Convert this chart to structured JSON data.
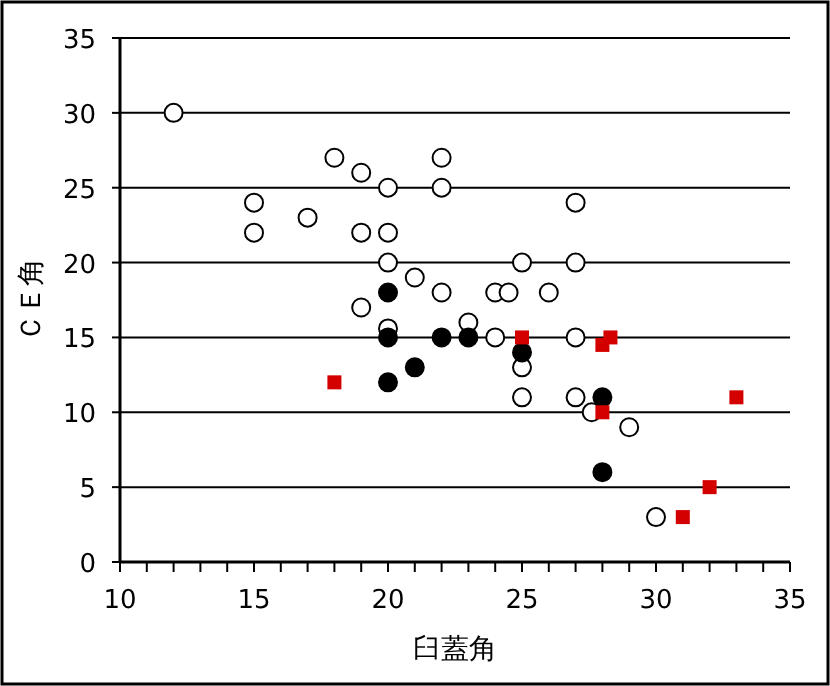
{
  "chart_data": {
    "type": "scatter",
    "xlabel": "臼蓋角",
    "ylabel": "ＣＥ角",
    "xlim": [
      10,
      35
    ],
    "ylim": [
      0,
      35
    ],
    "xticks": [
      10,
      {
        "value": 11,
        "label": null
      },
      {
        "value": 12,
        "label": null
      },
      {
        "value": 13,
        "label": null
      },
      {
        "value": 14,
        "label": null
      },
      15,
      {
        "value": 16,
        "label": null
      },
      {
        "value": 17,
        "label": null
      },
      {
        "value": 18,
        "label": null
      },
      {
        "value": 19,
        "label": null
      },
      20,
      {
        "value": 21,
        "label": null
      },
      {
        "value": 22,
        "label": null
      },
      {
        "value": 23,
        "label": null
      },
      {
        "value": 24,
        "label": null
      },
      25,
      {
        "value": 26,
        "label": null
      },
      {
        "value": 27,
        "label": null
      },
      {
        "value": 28,
        "label": null
      },
      {
        "value": 29,
        "label": null
      },
      30,
      {
        "value": 31,
        "label": null
      },
      {
        "value": 32,
        "label": null
      },
      {
        "value": 33,
        "label": null
      },
      {
        "value": 34,
        "label": null
      },
      35
    ],
    "yticks": [
      0,
      5,
      10,
      15,
      20,
      25,
      30,
      35
    ],
    "grid": "y",
    "series": [
      {
        "color": "#ffffff",
        "marker": "circle",
        "x": [
          12,
          15,
          15,
          17,
          18,
          19,
          20,
          22,
          22,
          19,
          20,
          20,
          19,
          22,
          21,
          20,
          23,
          24,
          24,
          24.5,
          26,
          25,
          27,
          27,
          27,
          25,
          25,
          27,
          27.6,
          29,
          30
        ],
        "values": [
          30,
          24,
          22,
          23,
          27,
          26,
          25,
          27,
          25,
          22,
          22,
          20,
          17,
          18,
          19,
          15.6,
          16,
          15,
          18,
          18,
          18,
          20,
          20,
          24,
          15,
          13,
          11,
          11,
          10,
          9,
          3
        ]
      },
      {
        "color": "#000000",
        "marker": "circle",
        "x": [
          20,
          20,
          22,
          23,
          25,
          20,
          21,
          28,
          28
        ],
        "values": [
          18,
          15,
          15,
          15,
          14,
          12,
          13,
          11,
          6
        ]
      },
      {
        "color": "#d40000",
        "marker": "square",
        "x": [
          18,
          25,
          28,
          28.3,
          28,
          33,
          32,
          31
        ],
        "values": [
          12,
          15,
          14.5,
          15,
          10,
          11,
          5,
          3
        ]
      }
    ]
  }
}
